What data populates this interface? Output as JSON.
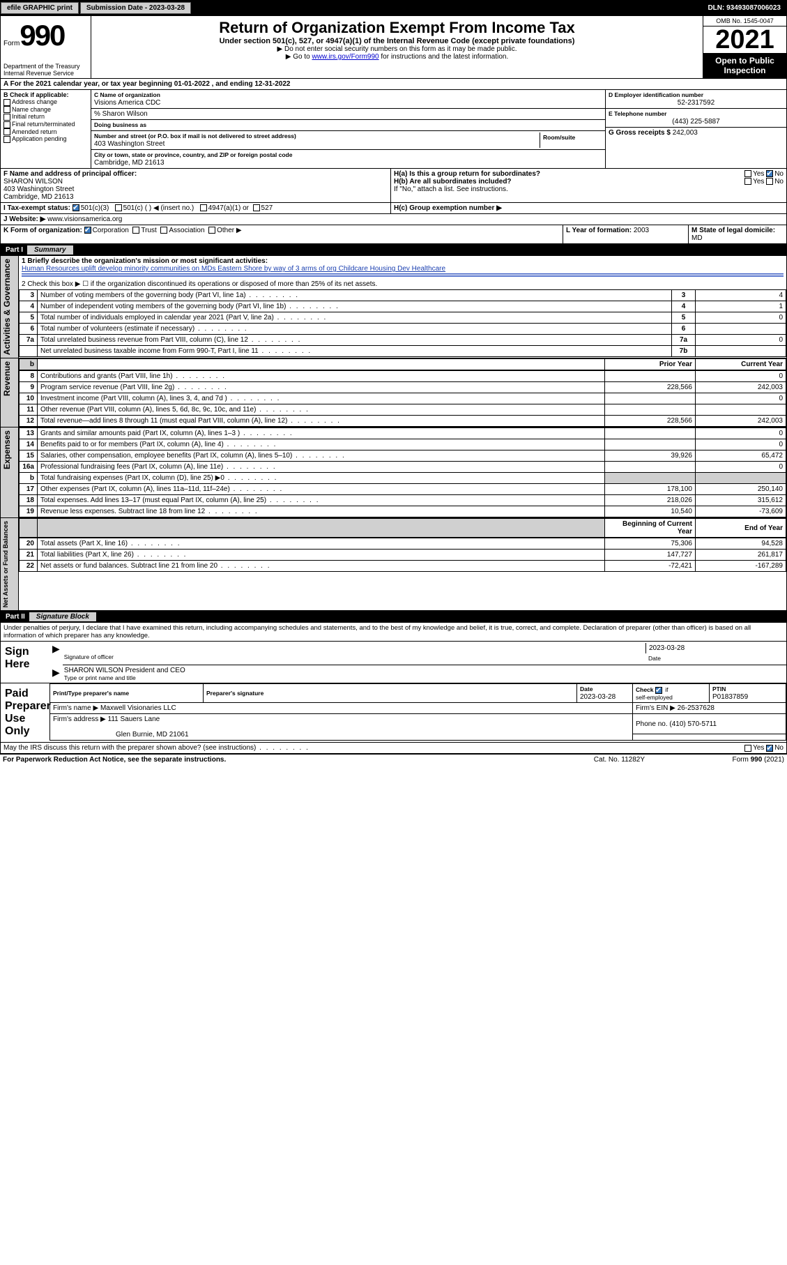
{
  "topbar": {
    "efile": "efile GRAPHIC print",
    "submission_label": "Submission Date - ",
    "submission_date": "2023-03-28",
    "dln_label": "DLN: ",
    "dln": "93493087006023"
  },
  "header": {
    "form_word": "Form",
    "form_number": "990",
    "dept1": "Department of the Treasury",
    "dept2": "Internal Revenue Service",
    "title": "Return of Organization Exempt From Income Tax",
    "subtitle": "Under section 501(c), 527, or 4947(a)(1) of the Internal Revenue Code (except private foundations)",
    "note1": "▶ Do not enter social security numbers on this form as it may be made public.",
    "note2a": "▶ Go to ",
    "note2link": "www.irs.gov/Form990",
    "note2b": " for instructions and the latest information.",
    "omb": "OMB No. 1545-0047",
    "year": "2021",
    "open": "Open to Public Inspection"
  },
  "period": {
    "a_label": "A For the 2021 calendar year, or tax year beginning ",
    "begin": "01-01-2022",
    "mid": " , and ending ",
    "end": "12-31-2022"
  },
  "checkB": {
    "label": "B Check if applicable:",
    "items": [
      "Address change",
      "Name change",
      "Initial return",
      "Final return/terminated",
      "Amended return",
      "Application pending"
    ]
  },
  "blockC": {
    "label": "C Name of organization",
    "org": "Visions America CDC",
    "care_label": "% Sharon Wilson",
    "dba_label": "Doing business as",
    "addr_label": "Number and street (or P.O. box if mail is not delivered to street address)",
    "room_label": "Room/suite",
    "street": "403 Washington Street",
    "city_label": "City or town, state or province, country, and ZIP or foreign postal code",
    "city": "Cambridge, MD  21613"
  },
  "blockD": {
    "label": "D Employer identification number",
    "ein": "52-2317592"
  },
  "blockE": {
    "label": "E Telephone number",
    "phone": "(443) 225-5887"
  },
  "blockG": {
    "label": "G Gross receipts $ ",
    "amount": "242,003"
  },
  "blockF": {
    "label": "F Name and address of principal officer:",
    "name": "SHARON WILSON",
    "street": "403 Washington Street",
    "city": "Cambridge, MD  21613"
  },
  "blockH": {
    "ha": "H(a)  Is this a group return for subordinates?",
    "hb": "H(b)  Are all subordinates included?",
    "hnote": "If \"No,\" attach a list. See instructions.",
    "hc": "H(c)  Group exemption number ▶",
    "yes": "Yes",
    "no": "No"
  },
  "taxexempt": {
    "label": "I    Tax-exempt status:",
    "c3": "501(c)(3)",
    "cx": "501(c) (   ) ◀ (insert no.)",
    "a1": "4947(a)(1) or",
    "s527": "527"
  },
  "website": {
    "label": "J   Website: ▶ ",
    "url": "www.visionsamerica.org"
  },
  "formorg": {
    "label": "K Form of organization:",
    "corp": "Corporation",
    "trust": "Trust",
    "assoc": "Association",
    "other": "Other ▶"
  },
  "L": {
    "label": "L Year of formation: ",
    "year": "2003"
  },
  "M": {
    "label": "M State of legal domicile:",
    "state": "MD"
  },
  "part1": {
    "tag": "Part I",
    "title": "Summary"
  },
  "summary": {
    "line1_label": "1   Briefly describe the organization's mission or most significant activities:",
    "line1_text": "Human Resources uplift develop minority communities on MDs Eastern Shore by way of 3 arms of org Childcare Housing Dev Healthcare",
    "line2": "2   Check this box ▶ ☐  if the organization discontinued its operations or disposed of more than 25% of its net assets.",
    "group_label": "Activities & Governance",
    "rev_label": "Revenue",
    "exp_label": "Expenses",
    "net_label": "Net Assets or Fund Balances",
    "prior": "Prior Year",
    "current": "Current Year",
    "boy": "Beginning of Current Year",
    "eoy": "End of Year",
    "lines_gov": [
      {
        "n": "3",
        "t": "Number of voting members of the governing body (Part VI, line 1a)",
        "k": "3",
        "v": "4"
      },
      {
        "n": "4",
        "t": "Number of independent voting members of the governing body (Part VI, line 1b)",
        "k": "4",
        "v": "1"
      },
      {
        "n": "5",
        "t": "Total number of individuals employed in calendar year 2021 (Part V, line 2a)",
        "k": "5",
        "v": "0"
      },
      {
        "n": "6",
        "t": "Total number of volunteers (estimate if necessary)",
        "k": "6",
        "v": ""
      },
      {
        "n": "7a",
        "t": "Total unrelated business revenue from Part VIII, column (C), line 12",
        "k": "7a",
        "v": "0"
      },
      {
        "n": "",
        "t": "Net unrelated business taxable income from Form 990-T, Part I, line 11",
        "k": "7b",
        "v": ""
      }
    ],
    "lines_rev": [
      {
        "n": "8",
        "t": "Contributions and grants (Part VIII, line 1h)",
        "p": "",
        "c": "0"
      },
      {
        "n": "9",
        "t": "Program service revenue (Part VIII, line 2g)",
        "p": "228,566",
        "c": "242,003"
      },
      {
        "n": "10",
        "t": "Investment income (Part VIII, column (A), lines 3, 4, and 7d )",
        "p": "",
        "c": "0"
      },
      {
        "n": "11",
        "t": "Other revenue (Part VIII, column (A), lines 5, 6d, 8c, 9c, 10c, and 11e)",
        "p": "",
        "c": ""
      },
      {
        "n": "12",
        "t": "Total revenue—add lines 8 through 11 (must equal Part VIII, column (A), line 12)",
        "p": "228,566",
        "c": "242,003"
      }
    ],
    "lines_exp": [
      {
        "n": "13",
        "t": "Grants and similar amounts paid (Part IX, column (A), lines 1–3 )",
        "p": "",
        "c": "0"
      },
      {
        "n": "14",
        "t": "Benefits paid to or for members (Part IX, column (A), line 4)",
        "p": "",
        "c": "0"
      },
      {
        "n": "15",
        "t": "Salaries, other compensation, employee benefits (Part IX, column (A), lines 5–10)",
        "p": "39,926",
        "c": "65,472"
      },
      {
        "n": "16a",
        "t": "Professional fundraising fees (Part IX, column (A), line 11e)",
        "p": "",
        "c": "0"
      },
      {
        "n": "b",
        "t": "Total fundraising expenses (Part IX, column (D), line 25) ▶0",
        "p": "",
        "c": "",
        "shade": true
      },
      {
        "n": "17",
        "t": "Other expenses (Part IX, column (A), lines 11a–11d, 11f–24e)",
        "p": "178,100",
        "c": "250,140"
      },
      {
        "n": "18",
        "t": "Total expenses. Add lines 13–17 (must equal Part IX, column (A), line 25)",
        "p": "218,026",
        "c": "315,612"
      },
      {
        "n": "19",
        "t": "Revenue less expenses. Subtract line 18 from line 12",
        "p": "10,540",
        "c": "-73,609"
      }
    ],
    "lines_net": [
      {
        "n": "20",
        "t": "Total assets (Part X, line 16)",
        "p": "75,306",
        "c": "94,528"
      },
      {
        "n": "21",
        "t": "Total liabilities (Part X, line 26)",
        "p": "147,727",
        "c": "261,817"
      },
      {
        "n": "22",
        "t": "Net assets or fund balances. Subtract line 21 from line 20",
        "p": "-72,421",
        "c": "-167,289"
      }
    ]
  },
  "part2": {
    "tag": "Part II",
    "title": "Signature Block"
  },
  "sig": {
    "decl": "Under penalties of perjury, I declare that I have examined this return, including accompanying schedules and statements, and to the best of my knowledge and belief, it is true, correct, and complete. Declaration of preparer (other than officer) is based on all information of which preparer has any knowledge.",
    "sign_here": "Sign Here",
    "sig_officer": "Signature of officer",
    "date": "Date",
    "sig_date": "2023-03-28",
    "name_title": "SHARON WILSON  President and CEO",
    "type_label": "Type or print name and title",
    "paid": "Paid Preparer Use Only",
    "prep_name_label": "Print/Type preparer's name",
    "prep_sig_label": "Preparer's signature",
    "prep_date_label": "Date",
    "prep_date": "2023-03-28",
    "check_label": "Check ☑ if self-employed",
    "ptin_label": "PTIN",
    "ptin": "P01837859",
    "firm_name_label": "Firm's name    ▶ ",
    "firm_name": "Maxwell Visionaries LLC",
    "firm_ein_label": "Firm's EIN ▶ ",
    "firm_ein": "26-2537628",
    "firm_addr_label": "Firm's address ▶ ",
    "firm_addr1": "111 Sauers Lane",
    "firm_addr2": "Glen Burnie, MD  21061",
    "firm_phone_label": "Phone no. ",
    "firm_phone": "(410) 570-5711",
    "discuss": "May the IRS discuss this return with the preparer shown above? (see instructions)"
  },
  "footer": {
    "left": "For Paperwork Reduction Act Notice, see the separate instructions.",
    "mid": "Cat. No. 11282Y",
    "right": "Form 990 (2021)"
  }
}
